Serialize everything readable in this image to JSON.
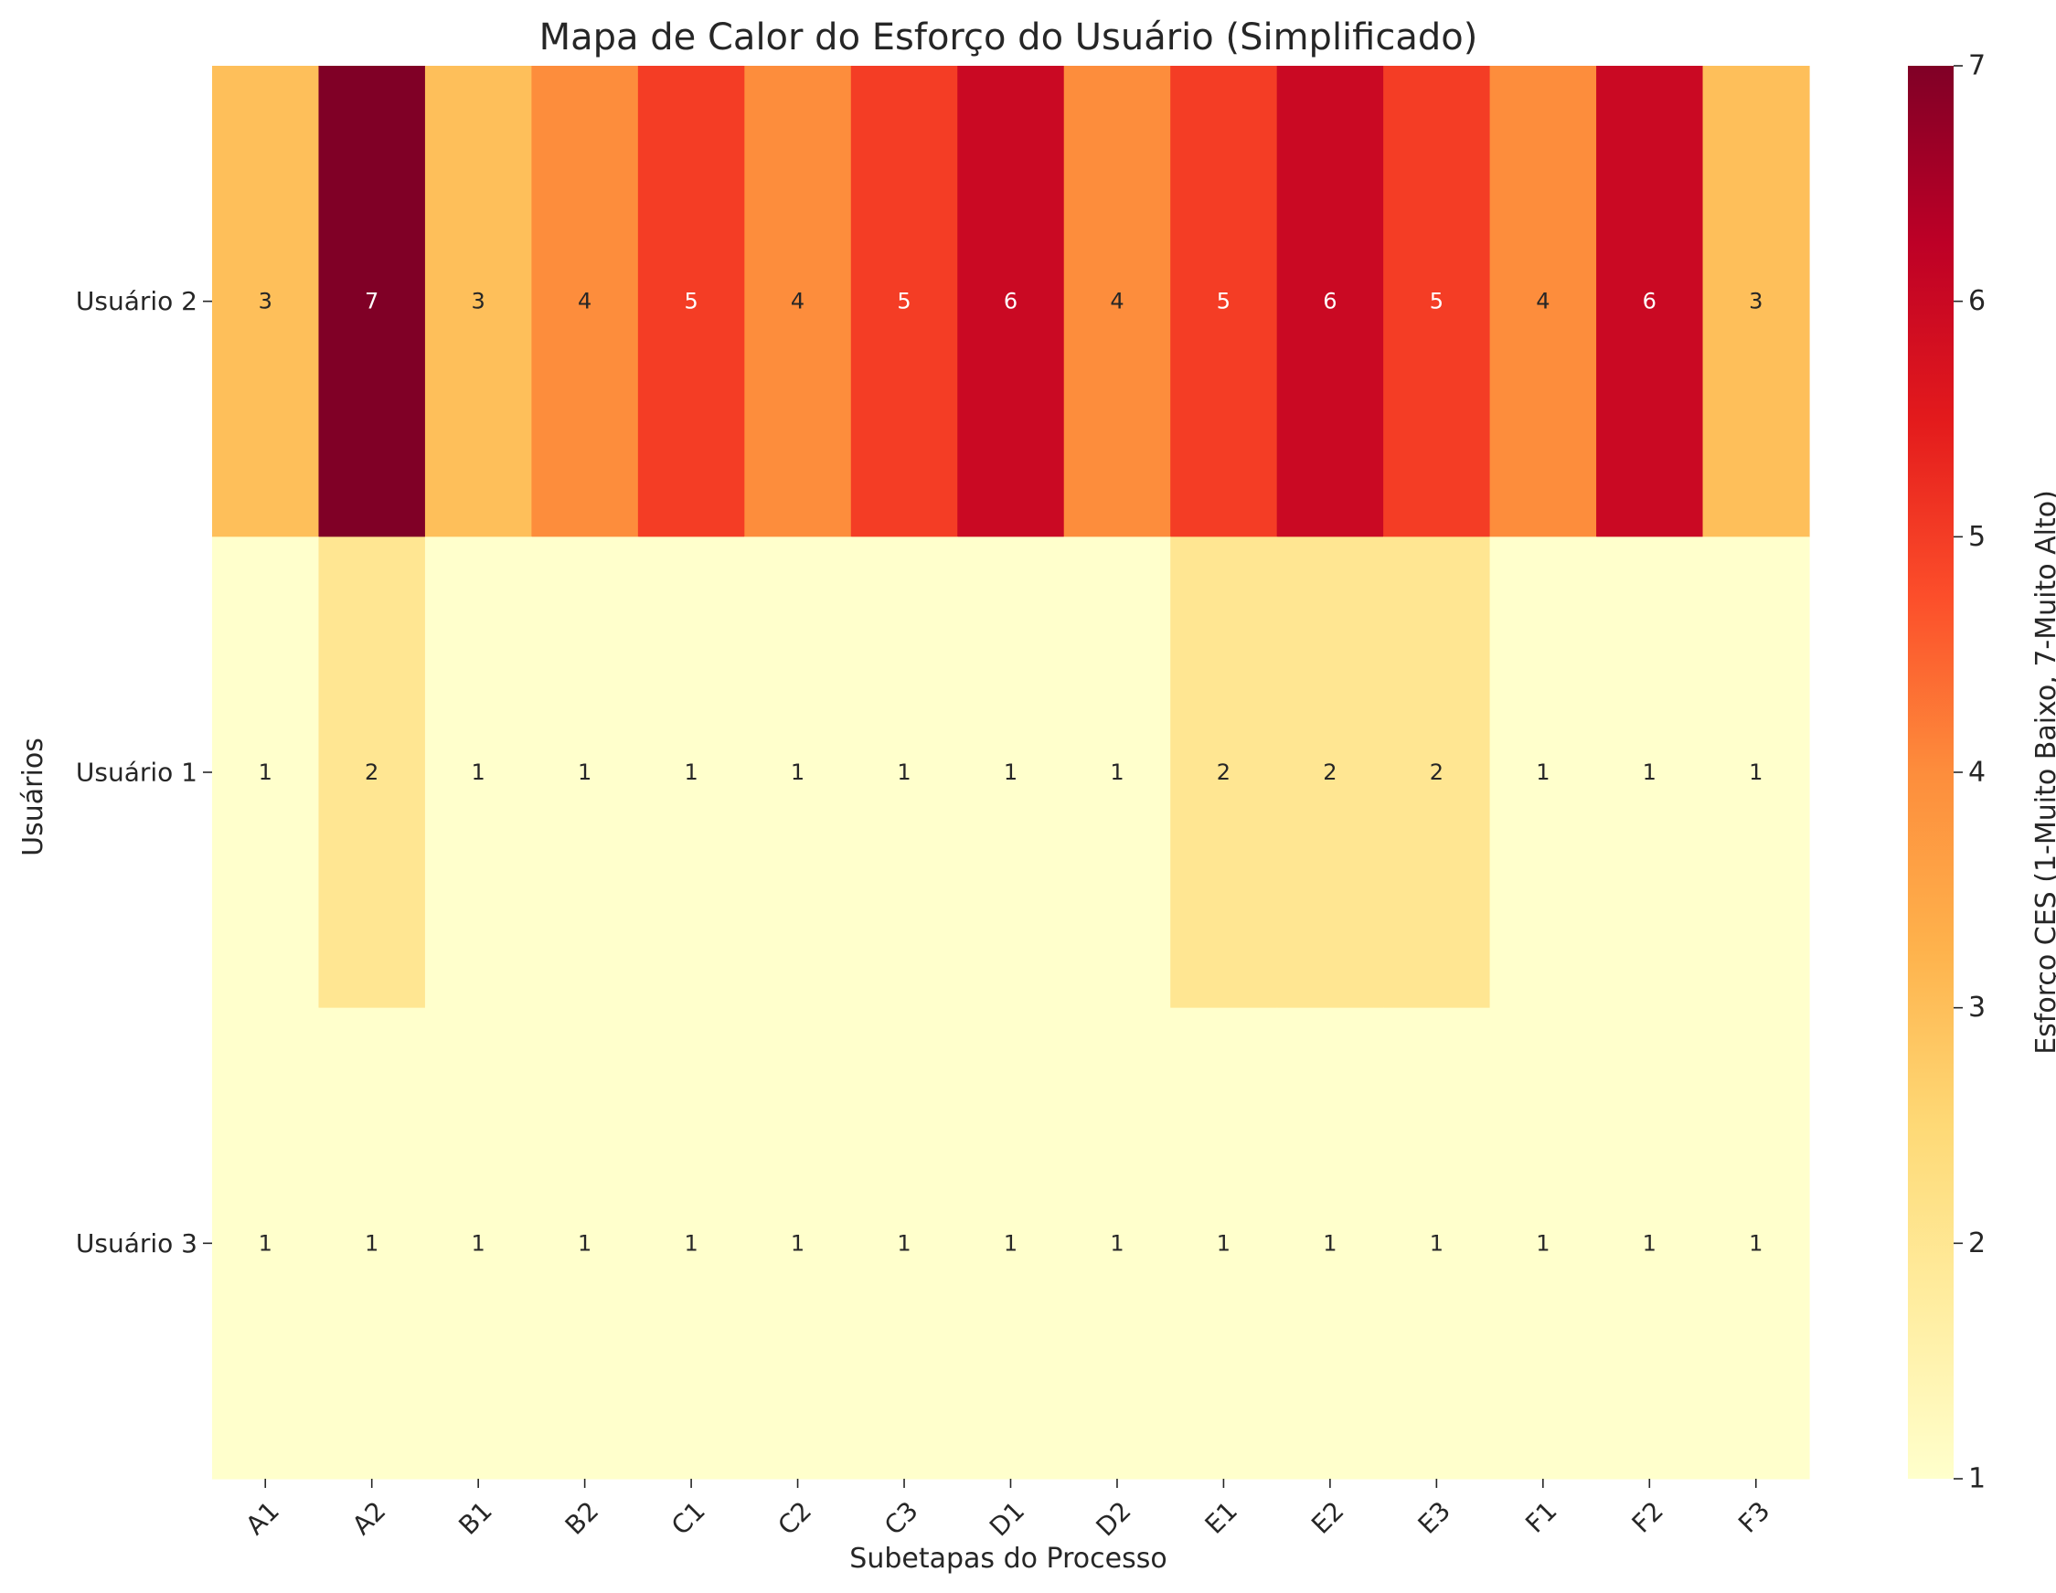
{
  "chart_data": {
    "type": "heatmap",
    "title": "Mapa de Calor do Esforço do Usuário (Simplificado)",
    "xlabel": "Subetapas do Processo",
    "ylabel": "Usuários",
    "colorbar_label": "Esforço CES (1-Muito Baixo, 7-Muito Alto)",
    "colormap": "YlOrRd",
    "color_range": [
      1,
      7
    ],
    "colorbar_ticks": [
      1,
      2,
      3,
      4,
      5,
      6,
      7
    ],
    "x_categories": [
      "A1",
      "A2",
      "B1",
      "B2",
      "C1",
      "C2",
      "C3",
      "D1",
      "D2",
      "E1",
      "E2",
      "E3",
      "F1",
      "F2",
      "F3"
    ],
    "y_categories": [
      "Usuário 2",
      "Usuário 1",
      "Usuário 3"
    ],
    "values": [
      [
        3,
        7,
        3,
        4,
        5,
        4,
        5,
        6,
        4,
        5,
        6,
        5,
        4,
        6,
        3
      ],
      [
        1,
        2,
        1,
        1,
        1,
        1,
        1,
        1,
        1,
        2,
        2,
        2,
        1,
        1,
        1
      ],
      [
        1,
        1,
        1,
        1,
        1,
        1,
        1,
        1,
        1,
        1,
        1,
        1,
        1,
        1,
        1
      ]
    ],
    "annotated": true,
    "grid": false
  }
}
